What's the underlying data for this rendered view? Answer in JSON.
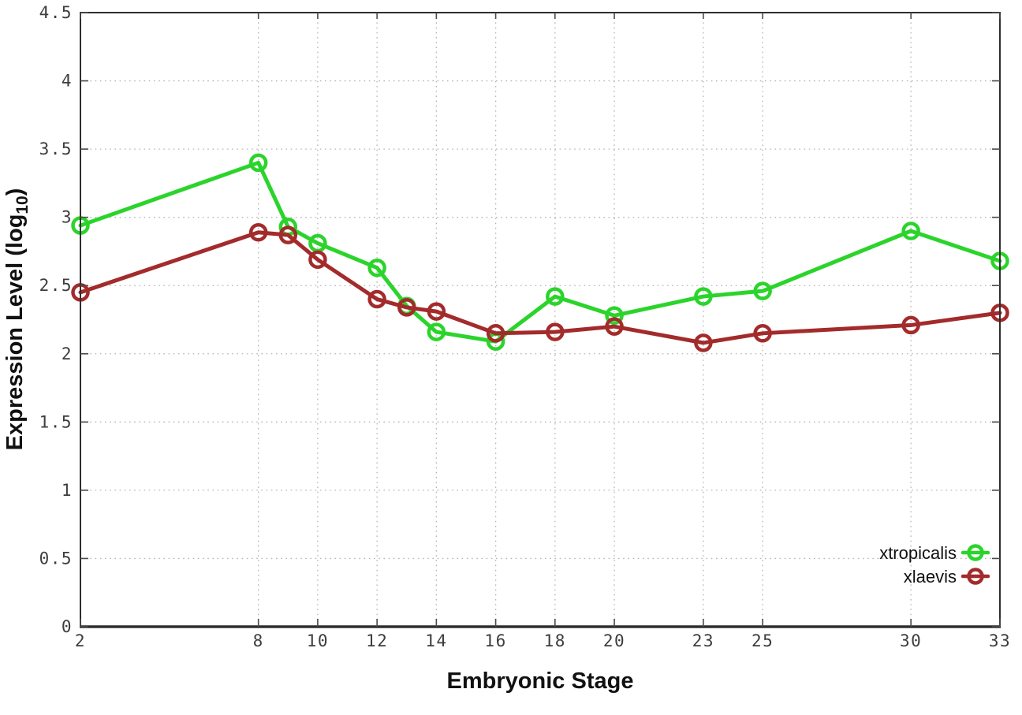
{
  "axes": {
    "x_title": "Embryonic Stage",
    "y_title_prefix": "Expression Level (log",
    "y_title_sub": "10",
    "y_title_suffix": ")"
  },
  "chart_data": {
    "type": "line",
    "title": "",
    "xlabel": "Embryonic Stage",
    "ylabel": "Expression Level (log10)",
    "x": [
      2,
      8,
      9,
      10,
      12,
      13,
      14,
      16,
      18,
      20,
      23,
      25,
      30,
      33
    ],
    "series": [
      {
        "name": "xtropicalis",
        "color": "#2bd42b",
        "values": [
          2.94,
          3.4,
          2.93,
          2.81,
          2.63,
          2.35,
          2.16,
          2.09,
          2.42,
          2.28,
          2.42,
          2.46,
          2.9,
          2.68
        ]
      },
      {
        "name": "xlaevis",
        "color": "#a32b2b",
        "values": [
          2.45,
          2.89,
          2.87,
          2.69,
          2.4,
          2.34,
          2.31,
          2.15,
          2.16,
          2.2,
          2.08,
          2.15,
          2.21,
          2.3
        ]
      }
    ],
    "xlim": [
      2,
      33
    ],
    "ylim": [
      0,
      4.5
    ],
    "xticks": [
      2,
      8,
      10,
      12,
      14,
      16,
      18,
      20,
      23,
      25,
      30,
      33
    ],
    "xtick_labels": [
      "2",
      "8",
      "10",
      "12",
      "14",
      "16",
      "18",
      "20",
      "23",
      "25",
      "30",
      "33"
    ],
    "yticks": [
      0,
      0.5,
      1,
      1.5,
      2,
      2.5,
      3,
      3.5,
      4,
      4.5
    ],
    "ytick_labels": [
      "0",
      "0.5",
      "1",
      "1.5",
      "2",
      "2.5",
      "3",
      "3.5",
      "4",
      "4.5"
    ],
    "grid": true,
    "legend_position": "bottom-right",
    "marker": "open-circle",
    "colors": {
      "grid": "#b4b4b4",
      "border": "#2e2e2e",
      "tick": "#4a4a4a",
      "tick_text": "#3d3d3d",
      "legend_text": "#111111"
    }
  }
}
